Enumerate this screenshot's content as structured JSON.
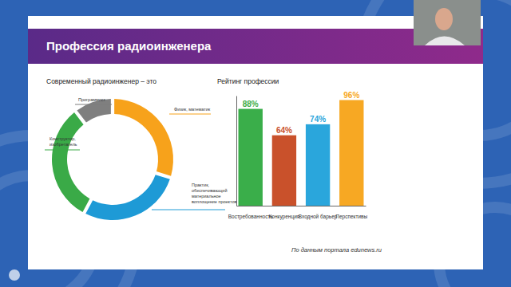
{
  "slide": {
    "title": "Профессия радиоинженера",
    "source": "По данным портала edunews.ru"
  },
  "chart_data": [
    {
      "type": "pie",
      "title": "Современный радиоинженер – это",
      "categories": [
        "Физик, математик",
        "Практик, обеспечивающий материальное воплощение проектов",
        "Конструктор, изобретатель",
        "Программист"
      ],
      "values": [
        30,
        28,
        32,
        10
      ],
      "colors": [
        "#f7a21b",
        "#1e9ad6",
        "#3aaa47",
        "#7f7f7f"
      ]
    },
    {
      "type": "bar",
      "title": "Рейтинг профессии",
      "categories": [
        "Востребованность",
        "Конкуренция",
        "Входной барьер",
        "Перспективы"
      ],
      "values": [
        88,
        64,
        74,
        96
      ],
      "value_labels": [
        "88%",
        "64%",
        "74%",
        "96%"
      ],
      "colors": [
        "#3aae4a",
        "#c9512b",
        "#2aa6dc",
        "#f7a823"
      ],
      "ylim": [
        0,
        100
      ],
      "data_labels": true,
      "tick_labels": "x"
    }
  ]
}
